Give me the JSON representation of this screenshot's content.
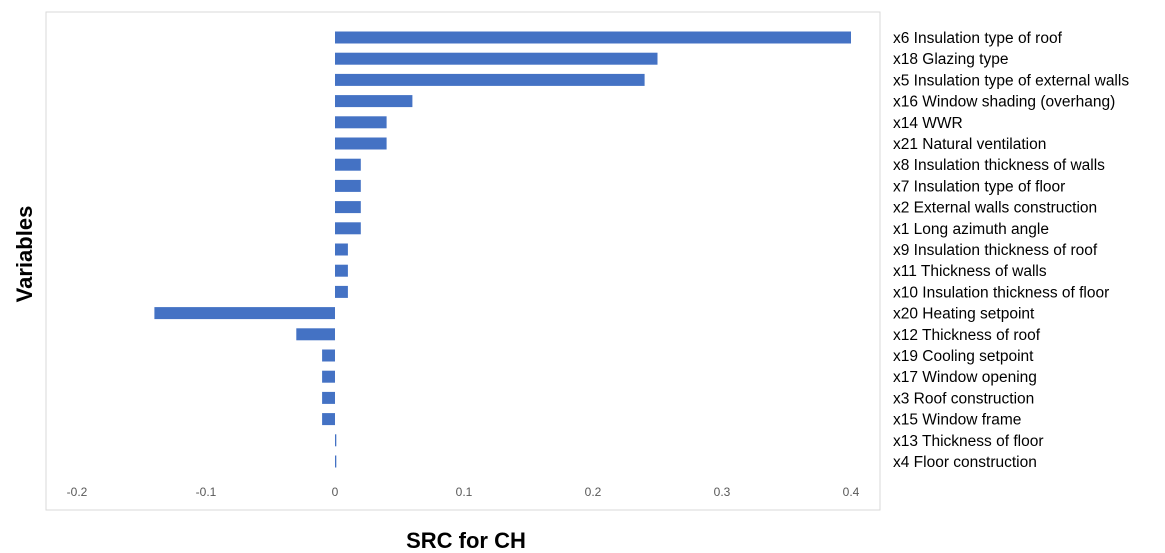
{
  "chart_data": {
    "type": "bar",
    "orientation": "horizontal",
    "xlabel": "SRC for CH",
    "ylabel": "Variables",
    "xlim": [
      -0.2,
      0.4
    ],
    "xticks": [
      "-0.2",
      "-0.1",
      "0",
      "0.1",
      "0.2",
      "0.3",
      "0.4"
    ],
    "grid": false,
    "legend": "none",
    "bar_color": "#4472C4",
    "categories": [
      "x6 Insulation type of roof",
      "x18 Glazing type",
      "x5 Insulation type of external walls",
      "x16 Window shading (overhang)",
      "x14 WWR",
      "x21 Natural ventilation",
      "x8 Insulation thickness of walls",
      "x7 Insulation type of floor",
      "x2 External walls construction",
      "x1 Long azimuth angle",
      "x9 Insulation thickness of roof",
      "x11 Thickness of walls",
      "x10 Insulation thickness of floor",
      "x20 Heating setpoint",
      "x12 Thickness of roof",
      "x19 Cooling setpoint",
      "x17 Window opening",
      "x3 Roof construction",
      "x15 Window frame",
      "x13 Thickness of floor",
      "x4 Floor construction"
    ],
    "values": [
      0.4,
      0.25,
      0.24,
      0.06,
      0.04,
      0.04,
      0.02,
      0.02,
      0.02,
      0.02,
      0.01,
      0.01,
      0.01,
      -0.14,
      -0.03,
      -0.01,
      -0.01,
      -0.01,
      -0.01,
      0.001,
      0.001
    ]
  }
}
